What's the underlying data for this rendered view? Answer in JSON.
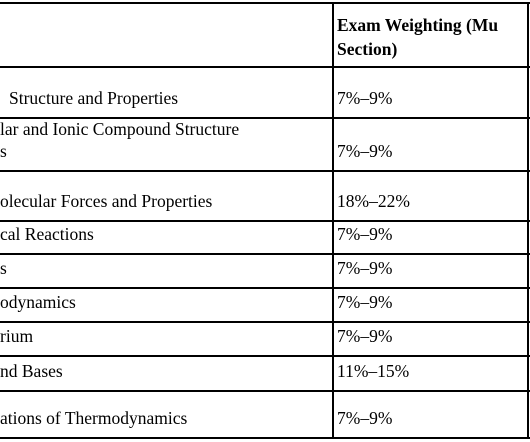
{
  "table": {
    "header": {
      "weighting": [
        "Exam Weighting (Mu",
        "Section)"
      ]
    },
    "rows": [
      {
        "unit": [
          "Structure and Properties"
        ],
        "weighting": "7%–9%"
      },
      {
        "unit": [
          "lar and Ionic Compound Structure",
          "s"
        ],
        "weighting": "7%–9%"
      },
      {
        "unit": [
          "olecular Forces and Properties"
        ],
        "weighting": "18%–22%"
      },
      {
        "unit": [
          "cal Reactions"
        ],
        "weighting": "7%–9%"
      },
      {
        "unit": [
          "s"
        ],
        "weighting": "7%–9%"
      },
      {
        "unit": [
          "odynamics"
        ],
        "weighting": "7%–9%"
      },
      {
        "unit": [
          "rium"
        ],
        "weighting": "7%–9%"
      },
      {
        "unit": [
          "nd Bases"
        ],
        "weighting": "11%–15%"
      },
      {
        "unit": [
          "ations of Thermodynamics"
        ],
        "weighting": "7%–9%"
      }
    ]
  }
}
